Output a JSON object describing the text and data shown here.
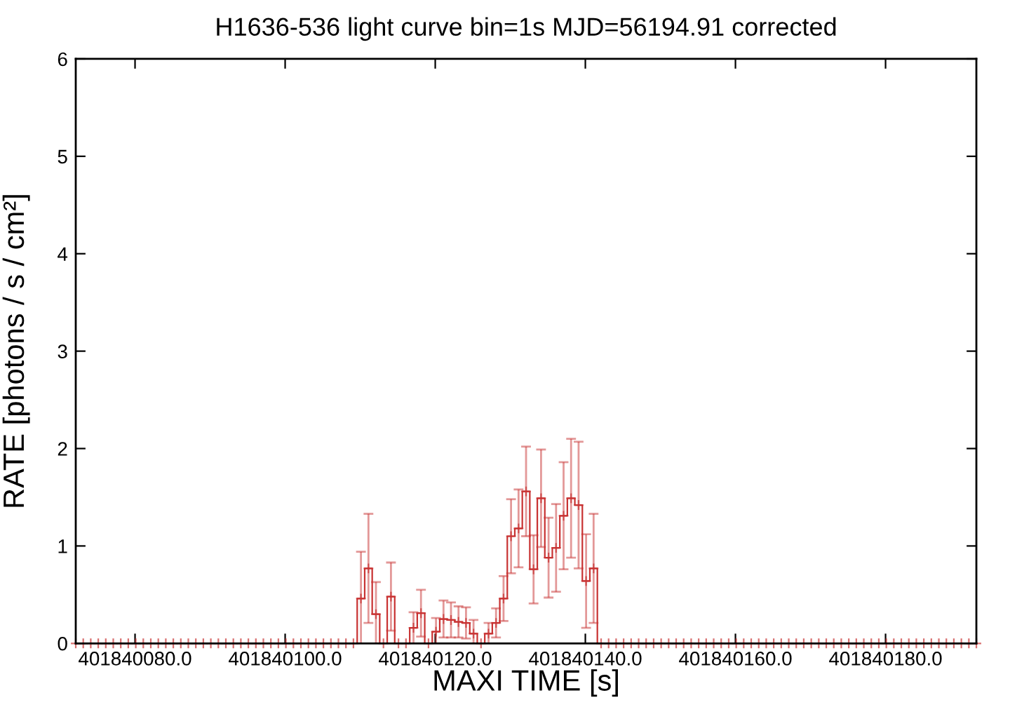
{
  "chart_data": {
    "type": "step",
    "title": "H1636-536 light curve bin=1s MJD=56194.91 corrected",
    "xlabel": "MAXI TIME [s]",
    "ylabel": "RATE [photons / s / cm²]",
    "x": [
      401840072.1,
      401840073.1,
      401840074.1,
      401840075.1,
      401840076.1,
      401840077.1,
      401840078.1,
      401840079.1,
      401840080.1,
      401840081.1,
      401840082.1,
      401840083.1,
      401840084.1,
      401840085.1,
      401840086.1,
      401840087.1,
      401840088.1,
      401840089.1,
      401840090.1,
      401840091.1,
      401840092.1,
      401840093.1,
      401840094.1,
      401840095.1,
      401840096.1,
      401840097.1,
      401840098.1,
      401840099.1,
      401840100.1,
      401840101.1,
      401840102.1,
      401840103.1,
      401840104.1,
      401840105.1,
      401840106.1,
      401840107.1,
      401840108.1,
      401840109.1,
      401840110.1,
      401840111.1,
      401840112.1,
      401840113.1,
      401840114.1,
      401840115.1,
      401840116.1,
      401840117.1,
      401840118.1,
      401840119.1,
      401840120.1,
      401840121.1,
      401840122.1,
      401840123.1,
      401840124.1,
      401840125.1,
      401840126.1,
      401840127.1,
      401840128.1,
      401840129.1,
      401840130.1,
      401840131.1,
      401840132.1,
      401840133.1,
      401840134.1,
      401840135.1,
      401840136.1,
      401840137.1,
      401840138.1,
      401840139.1,
      401840140.1,
      401840141.1,
      401840142.1,
      401840143.1,
      401840144.1,
      401840145.1,
      401840146.1,
      401840147.1,
      401840148.1,
      401840149.1,
      401840150.1,
      401840151.1,
      401840152.1,
      401840153.1,
      401840154.1,
      401840155.1,
      401840156.1,
      401840157.1,
      401840158.1,
      401840159.1,
      401840160.1,
      401840161.1,
      401840162.1,
      401840163.1,
      401840164.1,
      401840165.1,
      401840166.1,
      401840167.1,
      401840168.1,
      401840169.1,
      401840170.1,
      401840171.1,
      401840172.1,
      401840173.1,
      401840174.1,
      401840175.1,
      401840176.1,
      401840177.1,
      401840178.1,
      401840179.1,
      401840180.1,
      401840181.1,
      401840182.1,
      401840183.1,
      401840184.1,
      401840185.1,
      401840186.1,
      401840187.1,
      401840188.1,
      401840189.1,
      401840190.1,
      401840191.1,
      401840192.1
    ],
    "values": [
      0,
      0,
      0,
      0,
      0,
      0,
      0,
      0,
      0,
      0,
      0,
      0,
      0,
      0,
      0,
      0,
      0,
      0,
      0,
      0,
      0,
      0,
      0,
      0,
      0,
      0,
      0,
      0,
      0,
      0,
      0,
      0,
      0,
      0,
      0,
      0,
      0,
      0,
      0.46,
      0.77,
      0.3,
      0,
      0.48,
      0,
      0,
      0.16,
      0.31,
      0,
      0.12,
      0.25,
      0.24,
      0.22,
      0.21,
      0.1,
      0,
      0.1,
      0.21,
      0.46,
      1.1,
      1.18,
      1.56,
      0.76,
      1.49,
      0.88,
      0.98,
      1.31,
      1.49,
      1.42,
      0.64,
      0.77,
      0,
      0,
      0,
      0,
      0,
      0,
      0,
      0,
      0,
      0,
      0,
      0,
      0,
      0,
      0,
      0,
      0,
      0,
      0,
      0,
      0,
      0,
      0,
      0,
      0,
      0,
      0,
      0,
      0,
      0,
      0,
      0,
      0,
      0,
      0,
      0,
      0,
      0,
      0,
      0,
      0,
      0,
      0,
      0,
      0,
      0,
      0,
      0,
      0,
      0,
      0
    ],
    "errors": [
      null,
      null,
      null,
      null,
      null,
      null,
      null,
      null,
      null,
      null,
      null,
      null,
      null,
      null,
      null,
      null,
      null,
      null,
      null,
      null,
      null,
      null,
      null,
      null,
      null,
      null,
      null,
      null,
      null,
      null,
      null,
      null,
      null,
      null,
      null,
      null,
      null,
      null,
      [
        0,
        0.94
      ],
      0.56,
      [
        0,
        0.63
      ],
      null,
      0.35,
      null,
      null,
      0.16,
      0.24,
      null,
      [
        0,
        0.26
      ],
      0.19,
      0.18,
      0.16,
      0.16,
      [
        0,
        0.24
      ],
      null,
      [
        0,
        0.21
      ],
      0.15,
      0.23,
      0.38,
      0.4,
      0.46,
      0.35,
      0.5,
      0.41,
      0.45,
      0.55,
      0.61,
      0.65,
      0.48,
      0.56,
      null,
      null,
      null,
      null,
      null,
      null,
      null,
      null,
      null,
      null,
      null,
      null,
      null,
      null,
      null,
      null,
      null,
      null,
      null,
      null,
      null,
      null,
      null,
      null,
      null,
      null,
      null,
      null,
      null,
      null,
      null,
      null,
      null,
      null,
      null,
      null,
      null,
      null,
      null,
      null,
      null,
      null,
      null,
      null,
      null,
      null,
      null,
      null,
      null,
      null,
      null
    ],
    "color": "#c83232",
    "marker": "cross",
    "xlim": [
      401840072.1,
      401840192.1
    ],
    "xticks": [
      {
        "value": 401840080,
        "label": "401840080.0"
      },
      {
        "value": 401840100,
        "label": "401840100.0"
      },
      {
        "value": 401840120,
        "label": "401840120.0"
      },
      {
        "value": 401840140,
        "label": "401840140.0"
      },
      {
        "value": 401840160,
        "label": "401840160.0"
      },
      {
        "value": 401840180,
        "label": "401840180.0"
      }
    ],
    "ylim": [
      0,
      6
    ],
    "yticks": [
      0,
      1,
      2,
      3,
      4,
      5,
      6
    ]
  }
}
